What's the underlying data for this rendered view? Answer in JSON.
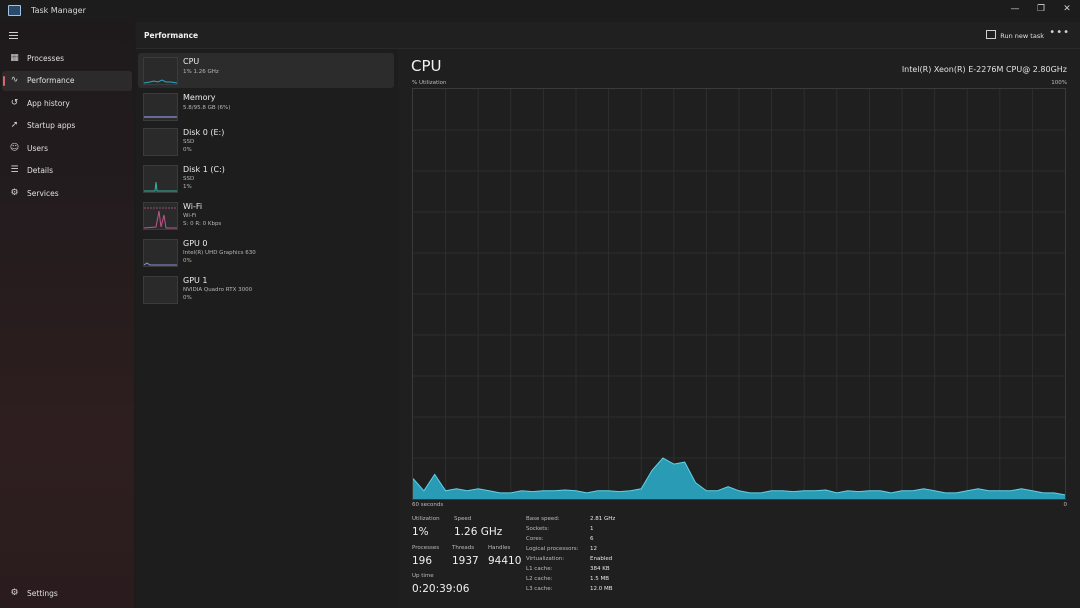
{
  "window": {
    "title": "Task Manager"
  },
  "sidebar": {
    "items": [
      {
        "label": "Processes",
        "icon": "processes-icon"
      },
      {
        "label": "Performance",
        "icon": "performance-icon"
      },
      {
        "label": "App history",
        "icon": "history-icon"
      },
      {
        "label": "Startup apps",
        "icon": "startup-icon"
      },
      {
        "label": "Users",
        "icon": "users-icon"
      },
      {
        "label": "Details",
        "icon": "details-icon"
      },
      {
        "label": "Services",
        "icon": "services-icon"
      }
    ],
    "settings_label": "Settings"
  },
  "header": {
    "title": "Performance",
    "run_task_label": "Run new task"
  },
  "devices": [
    {
      "name": "CPU",
      "line1": "1% 1.26 GHz",
      "line2": ""
    },
    {
      "name": "Memory",
      "line1": "5.8/95.8 GB (6%)",
      "line2": ""
    },
    {
      "name": "Disk 0 (E:)",
      "line1": "SSD",
      "line2": "0%"
    },
    {
      "name": "Disk 1 (C:)",
      "line1": "SSD",
      "line2": "1%"
    },
    {
      "name": "Wi-Fi",
      "line1": "Wi-Fi",
      "line2": "S: 0 R: 0 Kbps"
    },
    {
      "name": "GPU 0",
      "line1": "Intel(R) UHD Graphics 630",
      "line2": "0%"
    },
    {
      "name": "GPU 1",
      "line1": "NVIDIA Quadro RTX 3000",
      "line2": "0%"
    }
  ],
  "main": {
    "title": "CPU",
    "model": "Intel(R) Xeon(R) E-2276M CPU@ 2.80GHz",
    "util_label": "% Utilization",
    "max_label": "100%",
    "time_label": "60 seconds",
    "min_label": "0"
  },
  "stats": {
    "utilization_label": "Utilization",
    "utilization": "1%",
    "speed_label": "Speed",
    "speed": "1.26 GHz",
    "processes_label": "Processes",
    "processes": "196",
    "threads_label": "Threads",
    "threads": "1937",
    "handles_label": "Handles",
    "handles": "94410",
    "uptime_label": "Up time",
    "uptime": "0:20:39:06"
  },
  "specs": [
    {
      "key": "Base speed:",
      "value": "2.81 GHz"
    },
    {
      "key": "Sockets:",
      "value": "1"
    },
    {
      "key": "Cores:",
      "value": "6"
    },
    {
      "key": "Logical processors:",
      "value": "12"
    },
    {
      "key": "Virtualization:",
      "value": "Enabled"
    },
    {
      "key": "L1 cache:",
      "value": "384 KB"
    },
    {
      "key": "L2 cache:",
      "value": "1.5 MB"
    },
    {
      "key": "L3 cache:",
      "value": "12.0 MB"
    }
  ],
  "colors": {
    "accent": "#d9686c",
    "cpu_graph": "#2aa9c4",
    "grid": "#2e2e2e"
  },
  "chart_data": {
    "type": "area",
    "ylim": [
      0,
      100
    ],
    "xlim": [
      60,
      0
    ],
    "grid": true,
    "series": [
      {
        "values": [
          5,
          2,
          6,
          2,
          2.5,
          2,
          2.5,
          2,
          1.5,
          1.5,
          2,
          1.8,
          2,
          2,
          2.2,
          2,
          1.5,
          2,
          2,
          1.8,
          2,
          2.5,
          7,
          10,
          8.5,
          9,
          4,
          2,
          2,
          3,
          2,
          1.5,
          1.5,
          2,
          2,
          1.8,
          2,
          2,
          2.2,
          1.5,
          2,
          1.8,
          2,
          2,
          1.5,
          2,
          2,
          2.5,
          2,
          1.5,
          1.5,
          2,
          2.5,
          2,
          2,
          2,
          2.5,
          2,
          1.5,
          1.5,
          1
        ]
      }
    ]
  }
}
